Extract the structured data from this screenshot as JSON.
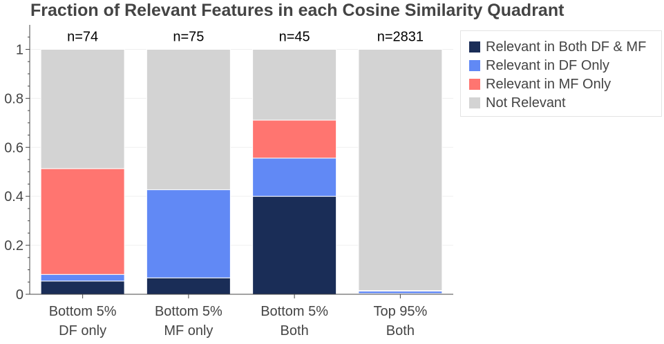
{
  "chart_data": {
    "type": "bar",
    "stacked": true,
    "title": "Fraction of Relevant Features in each Cosine Similarity Quadrant",
    "categories": [
      [
        "Bottom 5%",
        "DF only"
      ],
      [
        "Bottom 5%",
        "MF only"
      ],
      [
        "Bottom 5%",
        "Both"
      ],
      [
        "Top 95%",
        "Both"
      ]
    ],
    "bar_labels": [
      "n=74",
      "n=75",
      "n=45",
      "n=2831"
    ],
    "series": [
      {
        "name": "Relevant in Both DF & MF",
        "color": "#1a2d57",
        "values": [
          0.054,
          0.067,
          0.4,
          0.003
        ]
      },
      {
        "name": "Relevant in DF Only",
        "color": "#6189f5",
        "values": [
          0.027,
          0.36,
          0.156,
          0.01
        ]
      },
      {
        "name": "Relevant in MF Only",
        "color": "#ff7570",
        "values": [
          0.432,
          0,
          0.155,
          0.002
        ]
      },
      {
        "name": "Not Relevant",
        "color": "#d3d3d3",
        "values": [
          0.487,
          0.573,
          0.289,
          0.985
        ]
      }
    ],
    "ylim": [
      0,
      1.1
    ],
    "yticks": [
      0,
      0.2,
      0.4,
      0.6,
      0.8,
      1
    ],
    "ytick_labels": [
      "0",
      "0.2",
      "0.4",
      "0.6",
      "0.8",
      "1"
    ],
    "legend_position": "top-right",
    "grid": true
  }
}
